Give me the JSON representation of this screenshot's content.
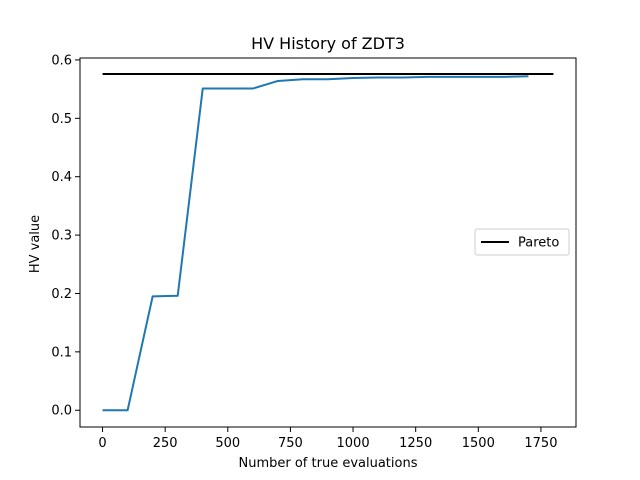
{
  "chart_data": {
    "type": "line",
    "title": "HV History of ZDT3",
    "xlabel": "Number of true evaluations",
    "ylabel": "HV value",
    "xlim": [
      -90,
      1890
    ],
    "ylim": [
      -0.0287,
      0.6033
    ],
    "xticks": [
      0,
      250,
      500,
      750,
      1000,
      1250,
      1500,
      1750
    ],
    "yticks": [
      0.0,
      0.1,
      0.2,
      0.3,
      0.4,
      0.5,
      0.6
    ],
    "grid": false,
    "legend": {
      "placement": "center-right",
      "entries": [
        "Pareto"
      ]
    },
    "series": [
      {
        "color": "#1f77b4",
        "x": [
          0,
          100,
          200,
          300,
          400,
          500,
          600,
          700,
          800,
          900,
          1000,
          1100,
          1200,
          1300,
          1400,
          1500,
          1600,
          1700
        ],
        "y": [
          0.0,
          0.0,
          0.195,
          0.196,
          0.551,
          0.551,
          0.551,
          0.564,
          0.567,
          0.567,
          0.569,
          0.57,
          0.57,
          0.571,
          0.571,
          0.571,
          0.571,
          0.572
        ]
      },
      {
        "name": "Pareto",
        "color": "#000000",
        "x": [
          0,
          1800
        ],
        "y": [
          0.576,
          0.576
        ]
      }
    ]
  }
}
